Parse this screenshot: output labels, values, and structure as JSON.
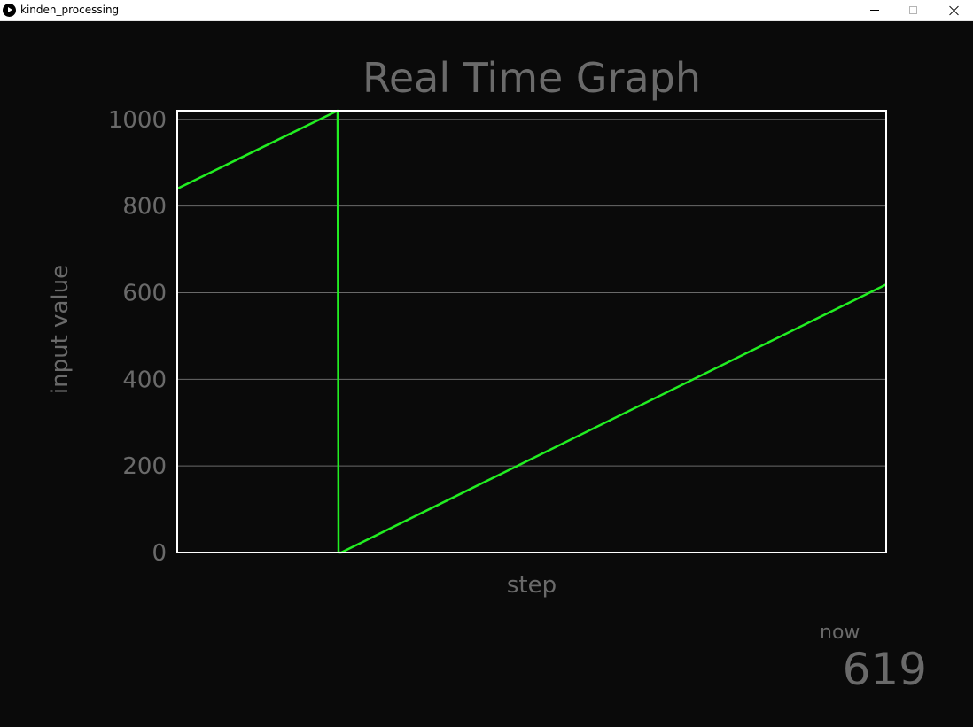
{
  "window": {
    "title": "kinden_processing"
  },
  "chart_data": {
    "type": "line",
    "title": "Real Time Graph",
    "xlabel": "step",
    "ylabel": "input value",
    "ylim": [
      0,
      1020
    ],
    "xlim": [
      0,
      800
    ],
    "yticks": [
      0,
      200,
      400,
      600,
      800,
      1000
    ],
    "grid": true,
    "series": [
      {
        "color": "#22ee22",
        "x": [
          0,
          181,
          182,
          185,
          800
        ],
        "y": [
          840,
          1020,
          0,
          0,
          619
        ]
      }
    ]
  },
  "readout": {
    "label": "now",
    "value": "619"
  },
  "colors": {
    "background": "#0a0a0a",
    "text": "#6a6a6a",
    "axis": "#ffffff",
    "grid": "#6a6a6a",
    "line": "#22ee22"
  }
}
